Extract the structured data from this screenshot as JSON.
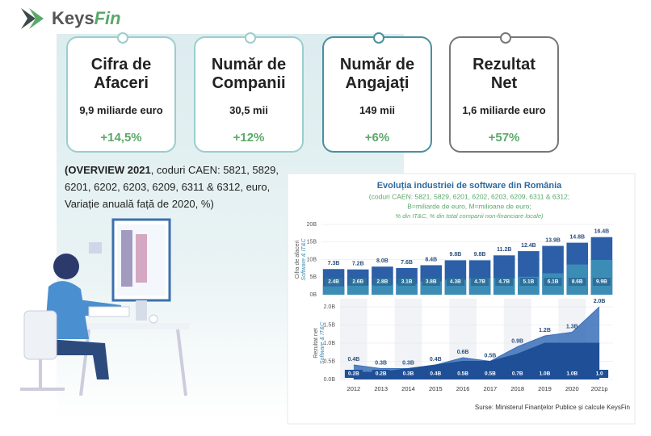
{
  "logo": [
    "Keys",
    "Fin"
  ],
  "cards": [
    {
      "title": [
        "Cifra de",
        "Afaceri"
      ],
      "value": "9,9 miliarde euro",
      "change": "+14,5%"
    },
    {
      "title": [
        "Număr de",
        "Companii"
      ],
      "value": "30,5 mii",
      "change": "+12%"
    },
    {
      "title": [
        "Număr de",
        "Angajați"
      ],
      "value": "149 mii",
      "change": "+6%"
    },
    {
      "title": [
        "Rezultat",
        "Net"
      ],
      "value": "1,6 miliarde euro",
      "change": "+57%"
    }
  ],
  "overview": {
    "lead": "(OVERVIEW 2021",
    "text": ", coduri CAEN: 5821, 5829, 6201, 6202, 6203, 6209, 6311 & 6312, euro, Variație anuală față de 2020, %)"
  },
  "panel": {
    "title": "Evoluția industriei de software din România",
    "subtitle": [
      "(coduri CAEN: 5821, 5829, 6201, 6202, 6203, 6209, 6311 & 6312;",
      "B=miliarde de euro, M=milioane de euro;",
      "% din IT&C, % din total companii non-financiare locale)"
    ],
    "source": "Surse: Ministerul Finanțelor Publice și calcule KeysFin"
  },
  "chart_data": [
    {
      "type": "bar",
      "ylabel": [
        "Cifra de afaceri",
        "Software & IT&C"
      ],
      "categories": [
        null,
        null,
        null,
        null,
        null,
        null,
        null,
        null,
        null,
        null,
        null,
        null
      ],
      "series": [
        {
          "color": "#2d5fa8",
          "values": [
            7.3,
            7.2,
            8.0,
            7.6,
            8.4,
            9.8,
            9.8,
            11.2,
            12.4,
            13.9,
            14.8,
            16.4
          ],
          "value_labels": [
            "7.3B",
            "7.2B",
            "8.0B",
            "7.6B",
            "8.4B",
            "9.8B",
            "9.8B",
            "11.2B",
            "12.4B",
            "13.9B",
            "14.8B",
            "16.4B"
          ]
        },
        {
          "color": "#3b8db5",
          "values": [
            2.4,
            2.6,
            2.8,
            3.1,
            3.8,
            4.3,
            4.7,
            4.7,
            5.1,
            6.1,
            8.6,
            9.9
          ],
          "value_labels": [
            "2.4B",
            "2.6B",
            "2.8B",
            "3.1B",
            "3.8B",
            "4.3B",
            "4.7B",
            "4.7B",
            "5.1B",
            "6.1B",
            "8.6B",
            "9.9B"
          ]
        }
      ],
      "ylim": [
        0,
        20
      ],
      "yticks": [
        {
          "value": 0,
          "label": "0B"
        },
        {
          "value": 5,
          "label": "5B"
        },
        {
          "value": 10,
          "label": "10B"
        },
        {
          "value": 15,
          "label": "15B"
        },
        {
          "value": 20,
          "label": "20B"
        }
      ],
      "grid": true
    },
    {
      "type": "area",
      "ylabel": [
        "Rezultat net",
        "Software & IT&C"
      ],
      "categories": [
        "2012",
        "2013",
        "2014",
        "2015",
        "2016",
        "2017",
        "2018",
        "2019",
        "2020",
        "2021p"
      ],
      "series": [
        {
          "color": "#3a6fb8",
          "values": [
            0.4,
            0.3,
            0.3,
            0.4,
            0.6,
            0.5,
            0.9,
            1.2,
            1.3,
            2.0
          ],
          "value_labels": [
            "0.4B",
            "0.3B",
            "0.3B",
            "0.4B",
            "0.6B",
            "0.5B",
            "0.9B",
            "1.2B",
            "1.3B",
            "2.0B"
          ]
        },
        {
          "color": "#1f4f96",
          "values": [
            0.2,
            0.2,
            0.3,
            0.4,
            0.5,
            0.5,
            0.7,
            1.0,
            1.0,
            1.0
          ],
          "value_labels": [
            "0.2B",
            "0.2B",
            "0.3B",
            "0.4B",
            "0.5B",
            "0.5B",
            "0.7B",
            "1.0B",
            "1.0B",
            "1.0"
          ]
        }
      ],
      "ylim": [
        0,
        2
      ],
      "yticks": [
        {
          "value": 0,
          "label": "0.0B"
        },
        {
          "value": 0.5,
          "label": "0.5B"
        },
        {
          "value": 1,
          "label": "1.0B"
        },
        {
          "value": 1.5,
          "label": "1.5B"
        },
        {
          "value": 2,
          "label": "2.0B"
        }
      ],
      "grid": true
    }
  ]
}
